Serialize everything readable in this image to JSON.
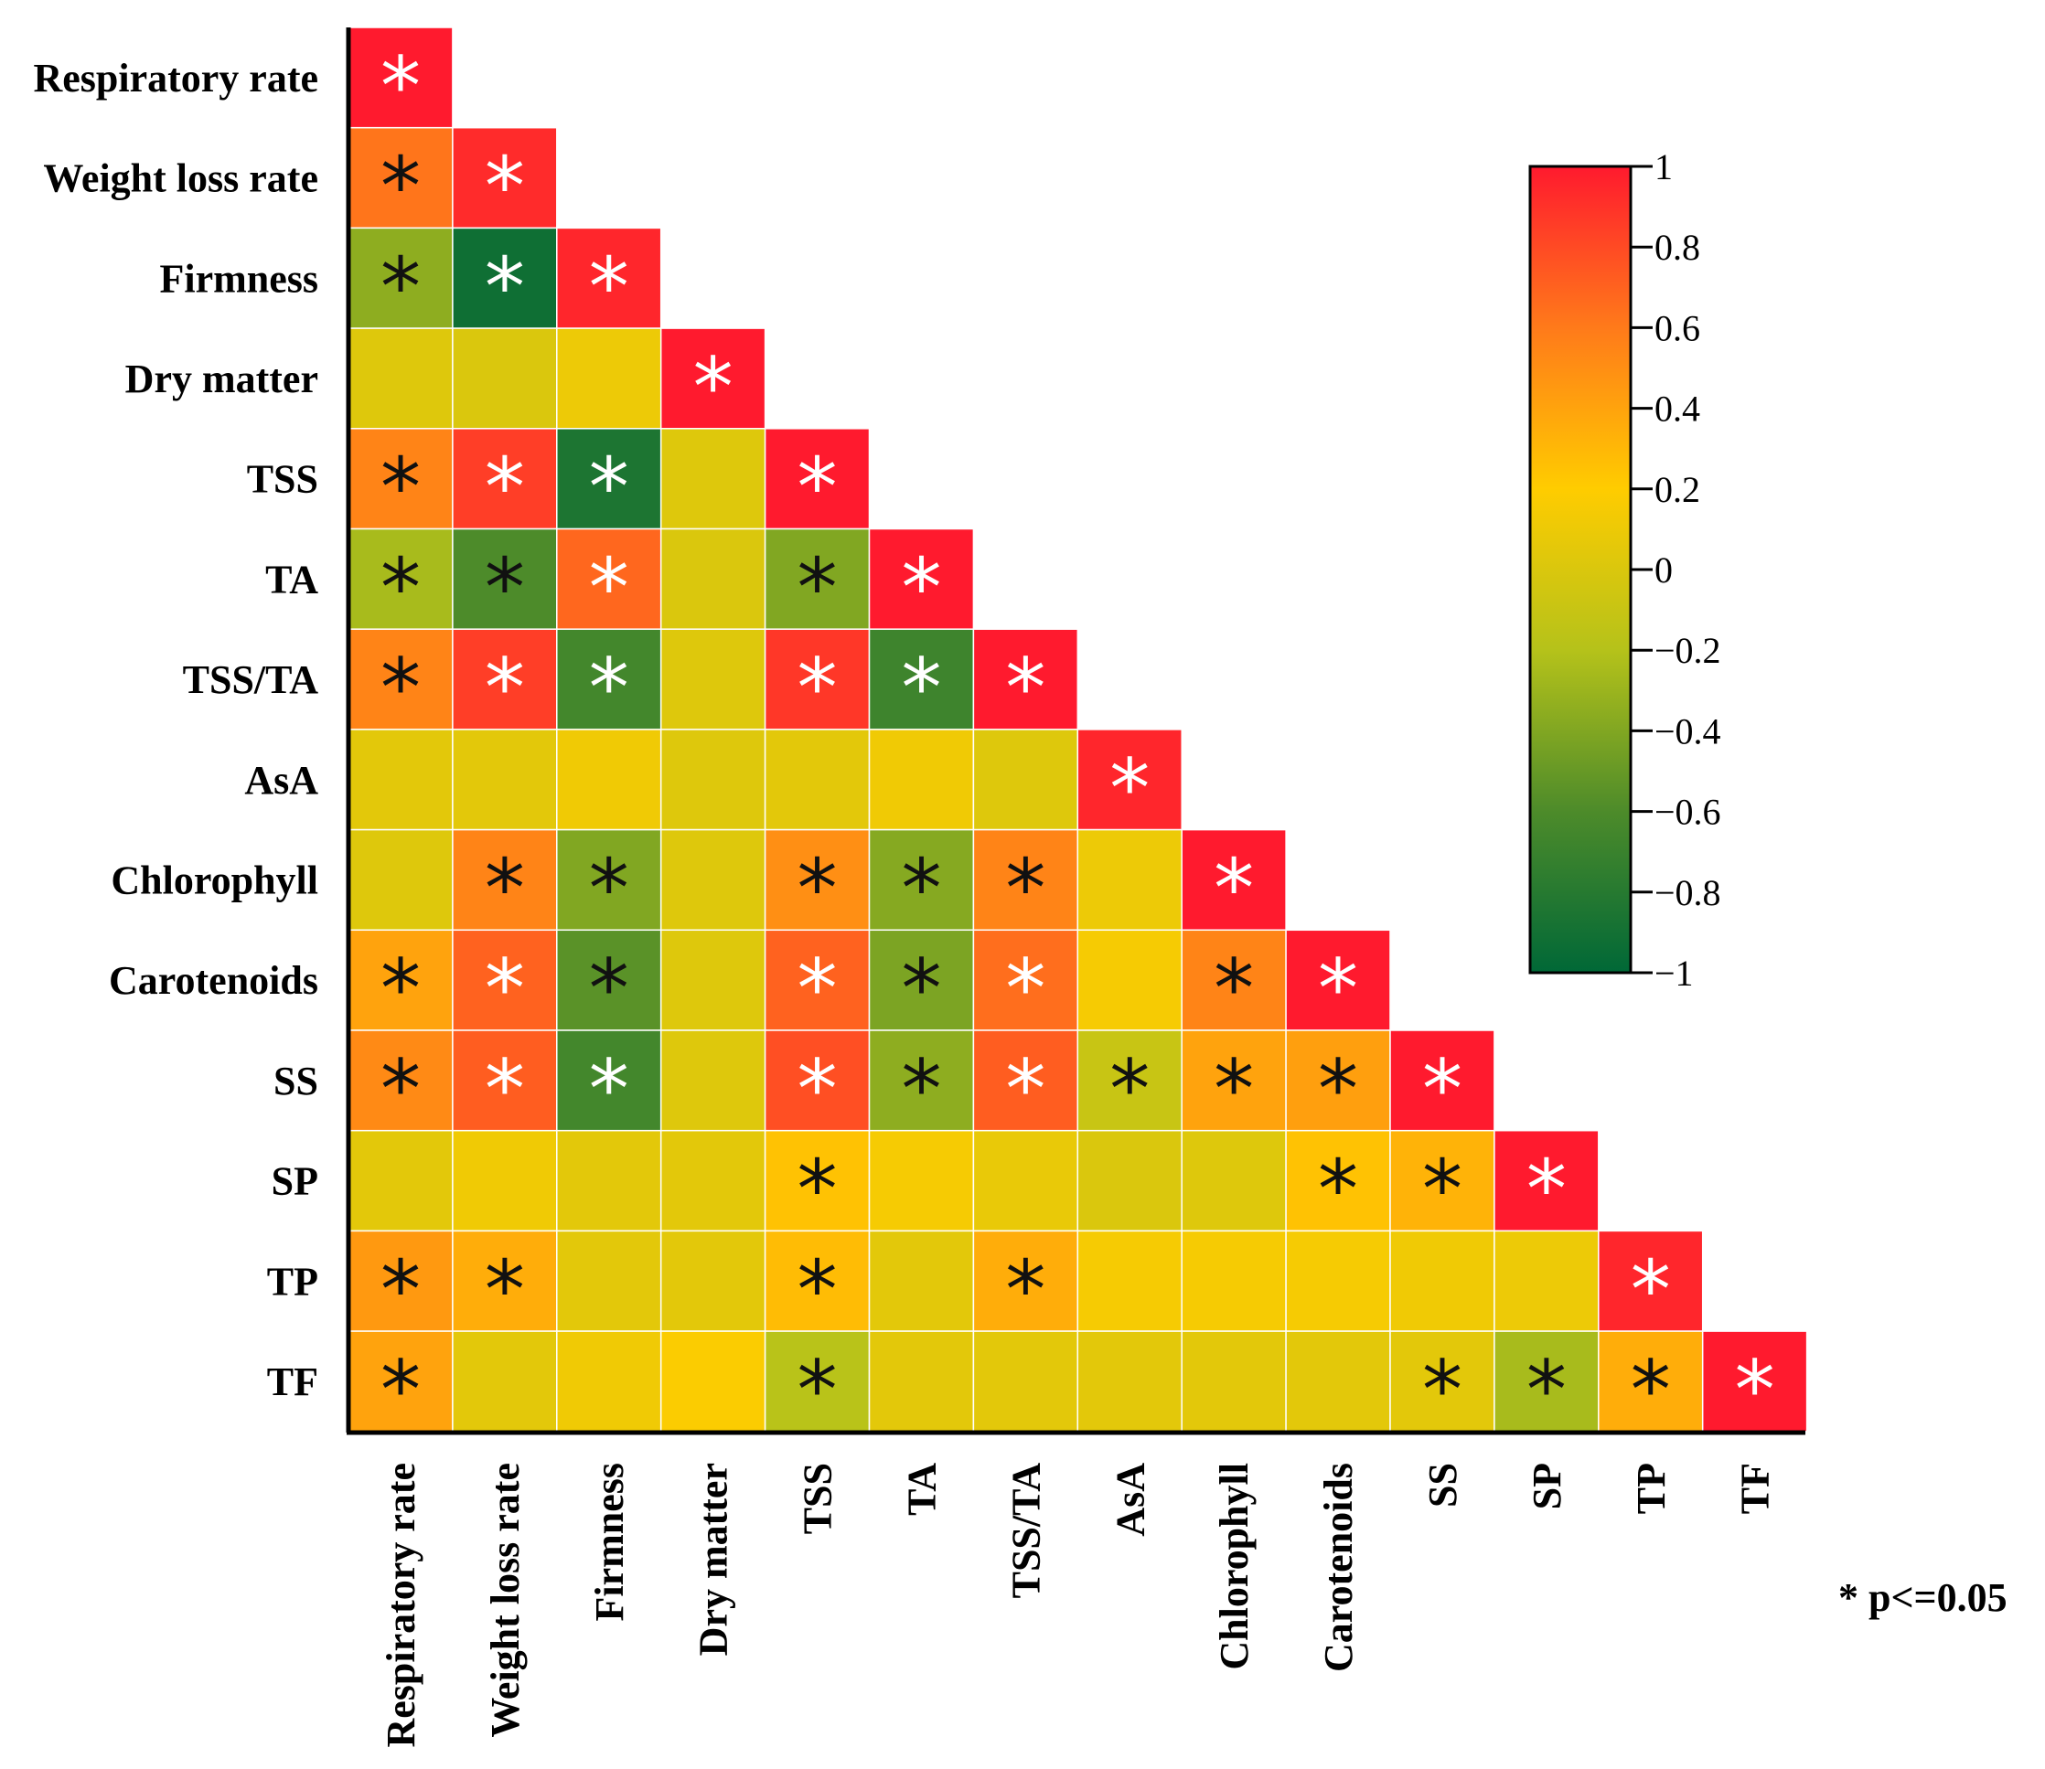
{
  "chart_data": {
    "type": "heatmap",
    "labels": [
      "Respiratory rate",
      "Weight loss rate",
      "Firmness",
      "Dry matter",
      "TSS",
      "TA",
      "TSS/TA",
      "AsA",
      "Chlorophyll",
      "Carotenoids",
      "SS",
      "SP",
      "TP",
      "TF"
    ],
    "values": [
      [
        1.0
      ],
      [
        0.62,
        0.93
      ],
      [
        -0.35,
        -0.92,
        0.95
      ],
      [
        0.02,
        0.0,
        0.1,
        1.0
      ],
      [
        0.55,
        0.85,
        -0.85,
        0.02,
        1.0
      ],
      [
        -0.25,
        -0.6,
        0.68,
        0.0,
        -0.4,
        1.0
      ],
      [
        0.55,
        0.85,
        -0.65,
        0.02,
        0.88,
        -0.68,
        1.0
      ],
      [
        0.05,
        0.05,
        0.12,
        0.02,
        0.05,
        0.12,
        0.02,
        0.95
      ],
      [
        0.02,
        0.55,
        -0.4,
        0.02,
        0.5,
        -0.38,
        0.55,
        0.1,
        1.0
      ],
      [
        0.4,
        0.7,
        -0.55,
        0.02,
        0.7,
        -0.42,
        0.65,
        0.15,
        0.55,
        1.0
      ],
      [
        0.52,
        0.72,
        -0.65,
        0.02,
        0.78,
        -0.35,
        0.72,
        -0.1,
        0.4,
        0.42,
        1.0
      ],
      [
        0.05,
        0.12,
        0.05,
        0.05,
        0.25,
        0.15,
        0.08,
        0.0,
        0.02,
        0.25,
        0.32,
        1.0
      ],
      [
        0.45,
        0.35,
        0.05,
        0.05,
        0.28,
        0.05,
        0.35,
        0.15,
        0.15,
        0.15,
        0.12,
        0.1,
        0.95
      ],
      [
        0.4,
        0.05,
        0.12,
        0.18,
        -0.18,
        0.05,
        0.05,
        0.05,
        0.05,
        0.05,
        0.05,
        -0.25,
        0.35,
        1.0
      ]
    ],
    "significant": [
      [
        1
      ],
      [
        1,
        1
      ],
      [
        1,
        1,
        1
      ],
      [
        0,
        0,
        0,
        1
      ],
      [
        1,
        1,
        1,
        0,
        1
      ],
      [
        1,
        1,
        1,
        0,
        1,
        1
      ],
      [
        1,
        1,
        1,
        0,
        1,
        1,
        1
      ],
      [
        0,
        0,
        0,
        0,
        0,
        0,
        0,
        1
      ],
      [
        0,
        1,
        1,
        0,
        1,
        1,
        1,
        0,
        1
      ],
      [
        1,
        1,
        1,
        0,
        1,
        1,
        1,
        0,
        1,
        1
      ],
      [
        1,
        1,
        1,
        0,
        1,
        1,
        1,
        1,
        1,
        1,
        1
      ],
      [
        0,
        0,
        0,
        0,
        1,
        0,
        0,
        0,
        0,
        1,
        1,
        1
      ],
      [
        1,
        1,
        0,
        0,
        1,
        0,
        1,
        0,
        0,
        0,
        0,
        0,
        1
      ],
      [
        1,
        0,
        0,
        0,
        1,
        0,
        0,
        0,
        0,
        0,
        1,
        1,
        1,
        1
      ]
    ],
    "star_color": [
      [
        "w"
      ],
      [
        "b",
        "w"
      ],
      [
        "b",
        "w",
        "w"
      ],
      [
        "",
        "",
        "",
        "w"
      ],
      [
        "b",
        "w",
        "w",
        "",
        "w"
      ],
      [
        "b",
        "b",
        "w",
        "",
        "b",
        "w"
      ],
      [
        "b",
        "w",
        "w",
        "",
        "w",
        "w",
        "w"
      ],
      [
        "",
        "",
        "",
        "",
        "",
        "",
        "",
        "w"
      ],
      [
        "",
        "b",
        "b",
        "",
        "b",
        "b",
        "b",
        "",
        "w"
      ],
      [
        "b",
        "w",
        "b",
        "",
        "w",
        "b",
        "w",
        "",
        "b",
        "w"
      ],
      [
        "b",
        "w",
        "w",
        "",
        "w",
        "b",
        "w",
        "b",
        "b",
        "b",
        "w"
      ],
      [
        "",
        "",
        "",
        "",
        "b",
        "",
        "",
        "",
        "",
        "b",
        "b",
        "w"
      ],
      [
        "b",
        "b",
        "",
        "",
        "b",
        "",
        "b",
        "",
        "",
        "",
        "",
        "",
        "w"
      ],
      [
        "b",
        "",
        "",
        "",
        "b",
        "",
        "",
        "",
        "",
        "",
        "b",
        "b",
        "b",
        "w"
      ]
    ],
    "star_symbol": "*",
    "colorbar": {
      "range": [
        -1,
        1
      ],
      "ticks": [
        "1",
        "0.8",
        "0.6",
        "0.4",
        "0.2",
        "0",
        "−0.2",
        "−0.4",
        "−0.6",
        "−0.8",
        "−1"
      ],
      "colors": [
        "#006837",
        "#4d8b2a",
        "#b5c21a",
        "#ffcc00",
        "#ff7a1a",
        "#ff1a2e"
      ]
    },
    "note": "* p<=0.05"
  }
}
